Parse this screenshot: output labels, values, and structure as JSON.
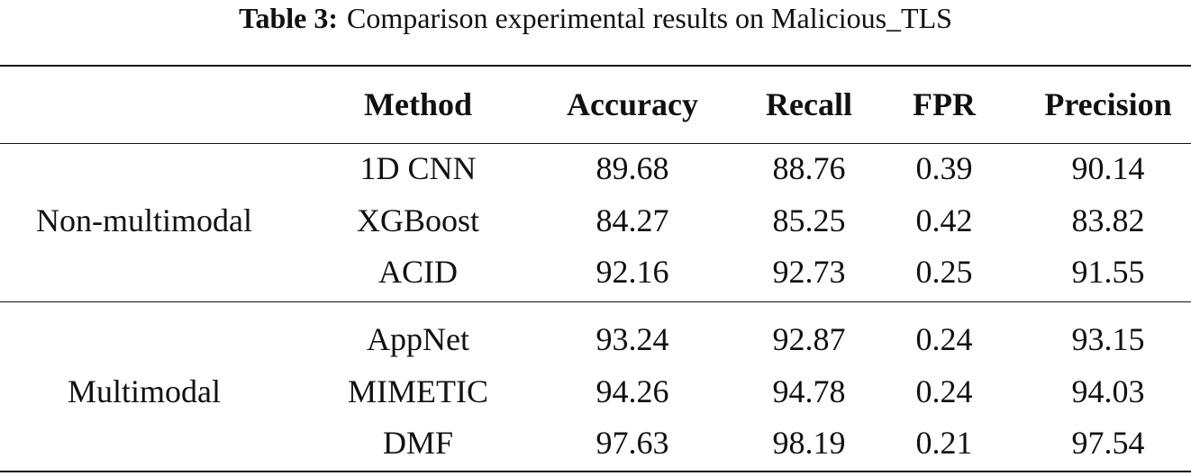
{
  "caption": {
    "label": "Table 3:",
    "text": "Comparison experimental results on Malicious_TLS"
  },
  "table": {
    "columns": [
      "Method",
      "Accuracy",
      "Recall",
      "FPR",
      "Precision"
    ],
    "groups": [
      {
        "name": "Non-multimodal",
        "rows": [
          [
            "1D CNN",
            "89.68",
            "88.76",
            "0.39",
            "90.14"
          ],
          [
            "XGBoost",
            "84.27",
            "85.25",
            "0.42",
            "83.82"
          ],
          [
            "ACID",
            "92.16",
            "92.73",
            "0.25",
            "91.55"
          ]
        ]
      },
      {
        "name": "Multimodal",
        "rows": [
          [
            "AppNet",
            "93.24",
            "92.87",
            "0.24",
            "93.15"
          ],
          [
            "MIMETIC",
            "94.26",
            "94.78",
            "0.24",
            "94.03"
          ],
          [
            "DMF",
            "97.63",
            "98.19",
            "0.21",
            "97.54"
          ]
        ]
      }
    ]
  }
}
